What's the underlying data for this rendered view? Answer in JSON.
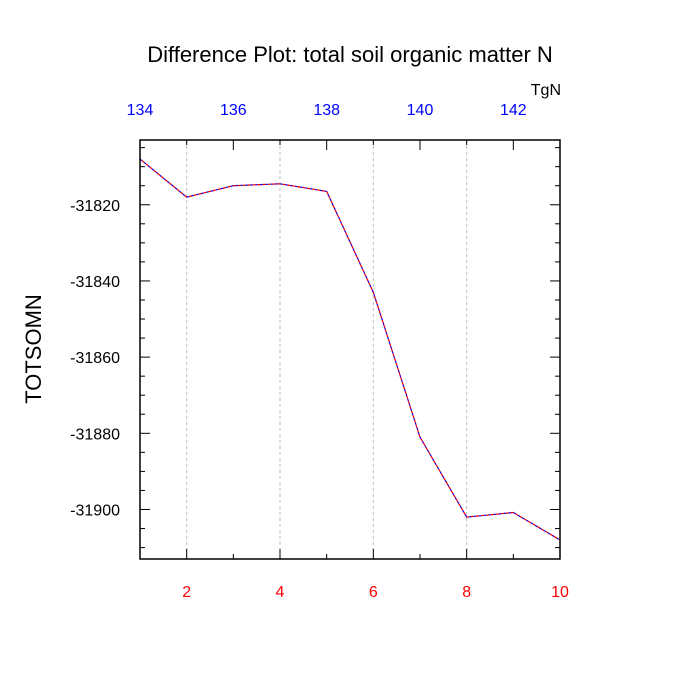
{
  "chart_data": {
    "type": "line",
    "title": "Difference Plot: total soil organic matter N",
    "ylabel": "TOTSOMN",
    "units": "TgN",
    "x": [
      1,
      2,
      3,
      4,
      5,
      6,
      7,
      8,
      9,
      10
    ],
    "xlim": [
      1,
      10
    ],
    "xticks": [
      2,
      4,
      6,
      8,
      10
    ],
    "x2lim": [
      134,
      143
    ],
    "x2ticks": [
      134,
      136,
      138,
      140,
      142
    ],
    "ylim": [
      -31913,
      -31803
    ],
    "yticks": [
      -31820,
      -31840,
      -31860,
      -31880,
      -31900
    ],
    "grid": "x",
    "series": [
      {
        "values": [
          -31808,
          -31818,
          -31815,
          -31814.5,
          -31816.5,
          -31843,
          -31881,
          -31902,
          -31900.8,
          -31908
        ]
      }
    ],
    "colors": {
      "bottom_ticks": "#ff0000",
      "top_ticks": "#0000ff",
      "line_a": "#0000ff",
      "line_b": "#ff0000",
      "grid": "#bbbbbb",
      "axis": "#000000"
    }
  }
}
